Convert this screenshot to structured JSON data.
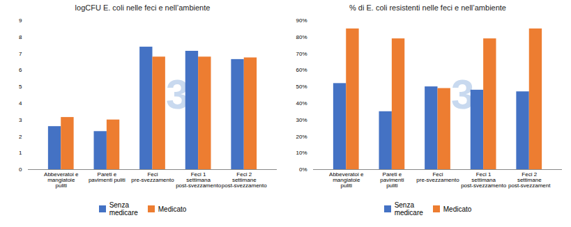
{
  "chart_data": [
    {
      "type": "bar",
      "title": "logCFU E. coli nelle feci e nell’ambiente",
      "categories": [
        "Abbeveratoi e\nmangiatoie\npuliti",
        "Pareti e\npavimenti puliti",
        "Feci\npre-svezzamento",
        "Feci 1\nsettimana\npost-svezzamento",
        "Feci 2\nsettimane\npost-svezzamento"
      ],
      "series": [
        {
          "name": "Senza\nmedicare",
          "color": "#4472C4",
          "values": [
            2.6,
            2.3,
            7.4,
            7.15,
            6.65
          ]
        },
        {
          "name": "Medicato",
          "color": "#ED7D31",
          "values": [
            3.15,
            3.0,
            6.8,
            6.8,
            6.75
          ]
        }
      ],
      "ylim": [
        0,
        9
      ],
      "yticks": [
        0,
        1,
        2,
        3,
        4,
        5,
        6,
        7,
        8,
        9
      ],
      "grid": false,
      "legend": "bottom",
      "annotations": [
        {
          "text": "3",
          "color": "#C8D9EF"
        }
      ]
    },
    {
      "type": "bar",
      "title": "% di E. coli resistenti nelle feci e nell’ambiente",
      "categories": [
        "Abbeveratoi e\nmangiatoie\npuliti",
        "Pareti e\npavimenti\npuliti",
        "Feci\npre-svezzamento",
        "Feci 1\nsettimana\npost-svezzamento",
        "Feci 2\nsettimane\npost-svezzament"
      ],
      "series": [
        {
          "name": "Senza\nmedicare",
          "color": "#4472C4",
          "values": [
            52,
            35,
            50,
            48,
            47
          ]
        },
        {
          "name": "Medicato",
          "color": "#ED7D31",
          "values": [
            85,
            79,
            49,
            79,
            85
          ]
        }
      ],
      "ylim": [
        0,
        90
      ],
      "yticks": [
        {
          "value": 0,
          "label": "0%"
        },
        {
          "value": 10,
          "label": "10%"
        },
        {
          "value": 20,
          "label": "20%"
        },
        {
          "value": 30,
          "label": "30%"
        },
        {
          "value": 40,
          "label": "40%"
        },
        {
          "value": 50,
          "label": "50%"
        },
        {
          "value": 60,
          "label": "60%"
        },
        {
          "value": 70,
          "label": "70%"
        },
        {
          "value": 80,
          "label": "80%"
        },
        {
          "value": 90,
          "label": "90%"
        }
      ],
      "grid": false,
      "legend": "bottom",
      "annotations": [
        {
          "text": "3",
          "color": "#C8D9EF"
        }
      ]
    }
  ]
}
